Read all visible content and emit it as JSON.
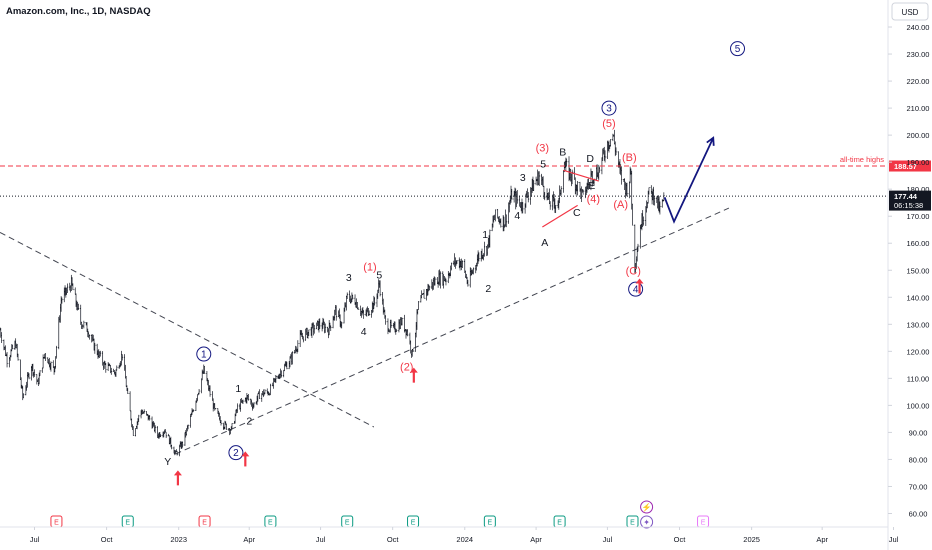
{
  "header": {
    "title": "Amazon.com, Inc., 1D, NASDAQ"
  },
  "currency_button": "USD",
  "chart_data": {
    "type": "line",
    "title": "Amazon.com, Inc., 1D, NASDAQ",
    "ylim": [
      55,
      250
    ],
    "y_ticks": [
      60,
      70,
      80,
      90,
      100,
      110,
      120,
      130,
      140,
      150,
      160,
      170,
      180,
      190,
      200,
      210,
      220,
      230,
      240
    ],
    "x_range": [
      "2022-05-18",
      "2025-06-24"
    ],
    "x_ticks": [
      {
        "date": "2022-07-01",
        "label": "Jul"
      },
      {
        "date": "2022-10-01",
        "label": "Oct"
      },
      {
        "date": "2023-01-01",
        "label": "2023"
      },
      {
        "date": "2023-04-01",
        "label": "Apr"
      },
      {
        "date": "2023-07-01",
        "label": "Jul"
      },
      {
        "date": "2023-10-01",
        "label": "Oct"
      },
      {
        "date": "2024-01-01",
        "label": "2024"
      },
      {
        "date": "2024-04-01",
        "label": "Apr"
      },
      {
        "date": "2024-07-01",
        "label": "Jul"
      },
      {
        "date": "2024-10-01",
        "label": "Oct"
      },
      {
        "date": "2025-01-01",
        "label": "2025"
      },
      {
        "date": "2025-04-01",
        "label": "Apr"
      },
      {
        "date": "2025-07-01",
        "label": "Jul"
      }
    ],
    "price_path": [
      {
        "x": "2022-05-18",
        "y": 128
      },
      {
        "x": "2022-05-27",
        "y": 117
      },
      {
        "x": "2022-06-07",
        "y": 123
      },
      {
        "x": "2022-06-16",
        "y": 103
      },
      {
        "x": "2022-06-27",
        "y": 115
      },
      {
        "x": "2022-07-05",
        "y": 108
      },
      {
        "x": "2022-07-14",
        "y": 119
      },
      {
        "x": "2022-07-26",
        "y": 113
      },
      {
        "x": "2022-08-04",
        "y": 139
      },
      {
        "x": "2022-08-17",
        "y": 145
      },
      {
        "x": "2022-08-29",
        "y": 131
      },
      {
        "x": "2022-09-07",
        "y": 128
      },
      {
        "x": "2022-09-15",
        "y": 122
      },
      {
        "x": "2022-09-28",
        "y": 115
      },
      {
        "x": "2022-10-12",
        "y": 112
      },
      {
        "x": "2022-10-21",
        "y": 119
      },
      {
        "x": "2022-10-28",
        "y": 103
      },
      {
        "x": "2022-11-04",
        "y": 90
      },
      {
        "x": "2022-11-14",
        "y": 98
      },
      {
        "x": "2022-11-25",
        "y": 95
      },
      {
        "x": "2022-12-05",
        "y": 89
      },
      {
        "x": "2022-12-14",
        "y": 91
      },
      {
        "x": "2022-12-28",
        "y": 82
      },
      {
        "x": "2023-01-06",
        "y": 86
      },
      {
        "x": "2023-01-18",
        "y": 97
      },
      {
        "x": "2023-02-02",
        "y": 113
      },
      {
        "x": "2023-02-16",
        "y": 98
      },
      {
        "x": "2023-02-27",
        "y": 93
      },
      {
        "x": "2023-03-09",
        "y": 91
      },
      {
        "x": "2023-03-17",
        "y": 99
      },
      {
        "x": "2023-03-29",
        "y": 103
      },
      {
        "x": "2023-04-06",
        "y": 100
      },
      {
        "x": "2023-04-14",
        "y": 104
      },
      {
        "x": "2023-04-26",
        "y": 105
      },
      {
        "x": "2023-05-10",
        "y": 112
      },
      {
        "x": "2023-05-24",
        "y": 117
      },
      {
        "x": "2023-06-05",
        "y": 125
      },
      {
        "x": "2023-06-20",
        "y": 128
      },
      {
        "x": "2023-06-30",
        "y": 130
      },
      {
        "x": "2023-07-11",
        "y": 128
      },
      {
        "x": "2023-07-20",
        "y": 135
      },
      {
        "x": "2023-07-28",
        "y": 130
      },
      {
        "x": "2023-08-04",
        "y": 140
      },
      {
        "x": "2023-08-14",
        "y": 139
      },
      {
        "x": "2023-08-25",
        "y": 133
      },
      {
        "x": "2023-09-08",
        "y": 138
      },
      {
        "x": "2023-09-14",
        "y": 145
      },
      {
        "x": "2023-09-22",
        "y": 130
      },
      {
        "x": "2023-10-02",
        "y": 128
      },
      {
        "x": "2023-10-12",
        "y": 131
      },
      {
        "x": "2023-10-20",
        "y": 127
      },
      {
        "x": "2023-10-26",
        "y": 119
      },
      {
        "x": "2023-11-03",
        "y": 137
      },
      {
        "x": "2023-11-14",
        "y": 143
      },
      {
        "x": "2023-11-28",
        "y": 147
      },
      {
        "x": "2023-12-08",
        "y": 147
      },
      {
        "x": "2023-12-18",
        "y": 153
      },
      {
        "x": "2023-12-28",
        "y": 153
      },
      {
        "x": "2024-01-05",
        "y": 145
      },
      {
        "x": "2024-01-18",
        "y": 155
      },
      {
        "x": "2024-01-30",
        "y": 159
      },
      {
        "x": "2024-02-08",
        "y": 170
      },
      {
        "x": "2024-02-21",
        "y": 168
      },
      {
        "x": "2024-03-01",
        "y": 178
      },
      {
        "x": "2024-03-14",
        "y": 174
      },
      {
        "x": "2024-03-25",
        "y": 180
      },
      {
        "x": "2024-04-05",
        "y": 185
      },
      {
        "x": "2024-04-18",
        "y": 175
      },
      {
        "x": "2024-04-30",
        "y": 175
      },
      {
        "x": "2024-05-06",
        "y": 189
      },
      {
        "x": "2024-05-16",
        "y": 185
      },
      {
        "x": "2024-05-24",
        "y": 181
      },
      {
        "x": "2024-05-31",
        "y": 177
      },
      {
        "x": "2024-06-10",
        "y": 185
      },
      {
        "x": "2024-06-20",
        "y": 187
      },
      {
        "x": "2024-07-01",
        "y": 197
      },
      {
        "x": "2024-07-08",
        "y": 200
      },
      {
        "x": "2024-07-17",
        "y": 186
      },
      {
        "x": "2024-07-25",
        "y": 180
      },
      {
        "x": "2024-07-31",
        "y": 186
      },
      {
        "x": "2024-08-02",
        "y": 166
      },
      {
        "x": "2024-08-05",
        "y": 152
      },
      {
        "x": "2024-08-12",
        "y": 166
      },
      {
        "x": "2024-08-22",
        "y": 178
      },
      {
        "x": "2024-08-30",
        "y": 178
      },
      {
        "x": "2024-09-06",
        "y": 172
      },
      {
        "x": "2024-09-12",
        "y": 177
      }
    ],
    "horizontal_lines": [
      {
        "name": "all-time-highs",
        "y": 188.57,
        "label": "all-time highs",
        "price_label": "188.57",
        "color": "#f23645",
        "style": "dashed"
      },
      {
        "name": "last-price",
        "y": 177.44,
        "price_label": "177.44",
        "countdown": "06:15:38",
        "color": "#131722",
        "style": "dotted"
      }
    ],
    "trendlines": [
      {
        "name": "falling-trendline",
        "from": {
          "x": "2022-05-18",
          "y": 164
        },
        "to": {
          "x": "2023-09-07",
          "y": 92
        }
      },
      {
        "name": "rising-trendline",
        "from": {
          "x": "2022-12-28",
          "y": 82
        },
        "to": {
          "x": "2024-12-03",
          "y": 173
        }
      }
    ],
    "projection": {
      "color": "#131780",
      "points": [
        {
          "x": "2024-09-12",
          "y": 177
        },
        {
          "x": "2024-09-24",
          "y": 168
        },
        {
          "x": "2024-11-13",
          "y": 199
        }
      ]
    },
    "triangle": [
      {
        "x": "2024-04-09",
        "y": 166
      },
      {
        "x": "2024-05-06",
        "y": 187
      },
      {
        "x": "2024-06-20",
        "y": 183
      },
      {
        "x": "2024-05-24",
        "y": 174
      }
    ],
    "circled_labels": [
      {
        "text": "1",
        "x": "2023-02-02",
        "y": 119
      },
      {
        "text": "2",
        "x": "2023-03-15",
        "y": 82.5
      },
      {
        "text": "3",
        "x": "2024-07-03",
        "y": 210
      },
      {
        "text": "4",
        "x": "2024-08-06",
        "y": 143
      },
      {
        "text": "5",
        "x": "2024-12-14",
        "y": 232
      }
    ],
    "red_labels": [
      {
        "text": "(1)",
        "x": "2023-09-02",
        "y": 150
      },
      {
        "text": "(2)",
        "x": "2023-10-19",
        "y": 113
      },
      {
        "text": "(3)",
        "x": "2024-04-09",
        "y": 194
      },
      {
        "text": "(4)",
        "x": "2024-06-13",
        "y": 175
      },
      {
        "text": "(5)",
        "x": "2024-07-03",
        "y": 203
      },
      {
        "text": "(A)",
        "x": "2024-07-18",
        "y": 173
      },
      {
        "text": "(B)",
        "x": "2024-07-29",
        "y": 190.5
      },
      {
        "text": "(C)",
        "x": "2024-08-03",
        "y": 148.5
      }
    ],
    "black_labels": [
      {
        "text": "Y",
        "x": "2022-12-18",
        "y": 78
      },
      {
        "text": "1",
        "x": "2023-03-18",
        "y": 105
      },
      {
        "text": "2",
        "x": "2023-04-01",
        "y": 93
      },
      {
        "text": "3",
        "x": "2023-08-06",
        "y": 146
      },
      {
        "text": "4",
        "x": "2023-08-25",
        "y": 126
      },
      {
        "text": "5",
        "x": "2023-09-14",
        "y": 147
      },
      {
        "text": "1",
        "x": "2024-01-27",
        "y": 162
      },
      {
        "text": "2",
        "x": "2024-01-31",
        "y": 142
      },
      {
        "text": "3",
        "x": "2024-03-15",
        "y": 183
      },
      {
        "text": "4",
        "x": "2024-03-08",
        "y": 169
      },
      {
        "text": "5",
        "x": "2024-04-10",
        "y": 188
      },
      {
        "text": "A",
        "x": "2024-04-12",
        "y": 159
      },
      {
        "text": "B",
        "x": "2024-05-05",
        "y": 192.5
      },
      {
        "text": "C",
        "x": "2024-05-23",
        "y": 170
      },
      {
        "text": "D",
        "x": "2024-06-09",
        "y": 190
      },
      {
        "text": "E",
        "x": "2024-06-11",
        "y": 180
      }
    ],
    "red_arrows": [
      {
        "x": "2022-12-31",
        "y": 73
      },
      {
        "x": "2023-03-27",
        "y": 80
      },
      {
        "x": "2023-10-28",
        "y": 111
      },
      {
        "x": "2024-08-11",
        "y": 144
      }
    ],
    "earnings_markers": [
      {
        "x": "2022-07-29",
        "text": "E",
        "color": "#f23645"
      },
      {
        "x": "2022-10-28",
        "text": "E",
        "color": "#089981"
      },
      {
        "x": "2023-02-03",
        "text": "E",
        "color": "#f23645"
      },
      {
        "x": "2023-04-28",
        "text": "E",
        "color": "#089981"
      },
      {
        "x": "2023-08-04",
        "text": "E",
        "color": "#089981"
      },
      {
        "x": "2023-10-27",
        "text": "E",
        "color": "#089981"
      },
      {
        "x": "2024-02-02",
        "text": "E",
        "color": "#089981"
      },
      {
        "x": "2024-05-01",
        "text": "E",
        "color": "#089981"
      },
      {
        "x": "2024-08-02",
        "text": "E",
        "color": "#089981"
      },
      {
        "x": "2024-10-31",
        "text": "E",
        "color": "#e879f9"
      }
    ],
    "event_icons": [
      {
        "name": "dividend-split-icon",
        "x": "2024-08-20",
        "glyph": "⚡",
        "color": "#9c27b0"
      },
      {
        "name": "news-event-icon",
        "x": "2024-08-20",
        "glyph": "✦",
        "color": "#7e57c2"
      }
    ]
  }
}
